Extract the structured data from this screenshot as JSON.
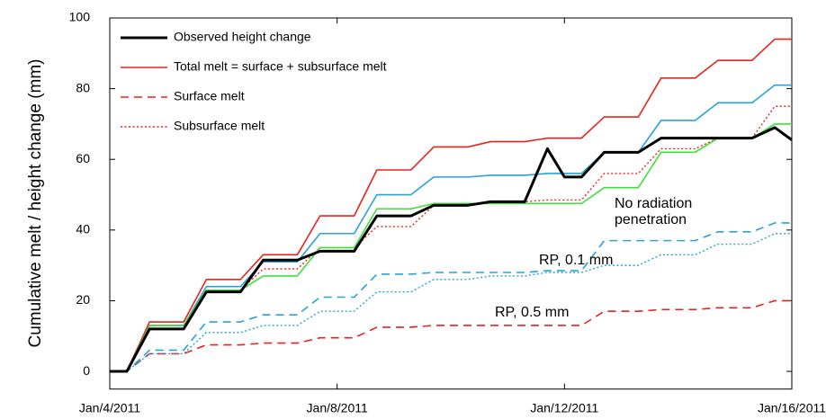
{
  "chart_data": {
    "type": "line",
    "y_label": "Cumulative melt / height change (mm)",
    "xlim": [
      4,
      16
    ],
    "xticks": [
      {
        "value": 4,
        "label": "Jan/4/2011"
      },
      {
        "value": 8,
        "label": "Jan/8/2011"
      },
      {
        "value": 12,
        "label": "Jan/12/2011"
      },
      {
        "value": 16,
        "label": "Jan/16/2011"
      }
    ],
    "ylim": [
      -5,
      100
    ],
    "yticks": [
      0,
      20,
      40,
      60,
      80,
      100
    ],
    "grid": false,
    "legend": "upper-left",
    "x": [
      4,
      4.3,
      4.7,
      5,
      5.3,
      5.7,
      6,
      6.3,
      6.7,
      7,
      7.3,
      7.7,
      8,
      8.3,
      8.7,
      9,
      9.3,
      9.7,
      10,
      10.3,
      10.7,
      11,
      11.3,
      11.7,
      12,
      12.3,
      12.7,
      13,
      13.3,
      13.7,
      14,
      14.3,
      14.7,
      15,
      15.3,
      15.7,
      16
    ],
    "series": [
      {
        "name": "Observed height change",
        "color": "#000000",
        "dash": "solid",
        "width": 3,
        "values": [
          0,
          0,
          12,
          12,
          12,
          22.5,
          22.5,
          22.5,
          31.5,
          31.5,
          31.5,
          34,
          34,
          34,
          44,
          44,
          44,
          47,
          47,
          47,
          48,
          48,
          48,
          63,
          55,
          55,
          62,
          62,
          62,
          66,
          66,
          66,
          66,
          66,
          66,
          69,
          65.5
        ]
      },
      {
        "name": "Total melt = surface + subsurface melt",
        "color": "#e8231e",
        "dash": "solid",
        "width": 1.6,
        "values": [
          0,
          0,
          14,
          14,
          14,
          26,
          26,
          26,
          33,
          33,
          33,
          44,
          44,
          44,
          57,
          57,
          57,
          63.5,
          63.5,
          63.5,
          65,
          65,
          65,
          66,
          66,
          66,
          72,
          72,
          72,
          83,
          83,
          83,
          88,
          88,
          88,
          94,
          94
        ]
      },
      {
        "name": "Surface melt",
        "color": "#e8231e",
        "dash": "dashed",
        "width": 1.6,
        "values": [
          0,
          0,
          5,
          5,
          5,
          7.5,
          7.5,
          7.5,
          8,
          8,
          8,
          9.5,
          9.5,
          9.5,
          12.5,
          12.5,
          12.5,
          13,
          13,
          13,
          13,
          13,
          13,
          13,
          13,
          13,
          17,
          17,
          17,
          17.5,
          17.5,
          17.5,
          18,
          18,
          18,
          20,
          20
        ]
      },
      {
        "name": "Subsurface melt",
        "color": "#e8231e",
        "dash": "dotted",
        "width": 1.4,
        "values": [
          0,
          0,
          13,
          13,
          13,
          23,
          23,
          23,
          29,
          29,
          29,
          35,
          35,
          35,
          41,
          41,
          41,
          47,
          47,
          47,
          48,
          48,
          48,
          48.5,
          48.5,
          48.5,
          56,
          56,
          56,
          63,
          63,
          63,
          66,
          66,
          66,
          75,
          75
        ]
      },
      {
        "color": "#27a3d8",
        "dash": "solid",
        "width": 1.6,
        "values": [
          0,
          0,
          13,
          13,
          13,
          24,
          24,
          24,
          31,
          31,
          31,
          39,
          39,
          39,
          50,
          50,
          50,
          55,
          55,
          55,
          55.5,
          55.5,
          55.5,
          56,
          56,
          56,
          62,
          62,
          62,
          71,
          71,
          71,
          76,
          76,
          76,
          81,
          81
        ]
      },
      {
        "color": "#27a3d8",
        "dash": "dashed",
        "width": 1.6,
        "values": [
          0,
          0,
          6,
          6,
          6,
          14,
          14,
          14,
          16,
          16,
          16,
          21,
          21,
          21,
          27.5,
          27.5,
          27.5,
          28,
          28,
          28,
          28,
          28,
          28,
          28.5,
          28.5,
          28.5,
          37,
          37,
          37,
          37,
          37,
          37,
          39.5,
          39.5,
          39.5,
          42,
          42
        ]
      },
      {
        "color": "#27a3d8",
        "dash": "dotted",
        "width": 1.4,
        "values": [
          0,
          0,
          5,
          5,
          5,
          11,
          11,
          11,
          13,
          13,
          13,
          17,
          17,
          17,
          22.5,
          22.5,
          22.5,
          26,
          26,
          26,
          27,
          27,
          27,
          28,
          28,
          28,
          30,
          30,
          30,
          33,
          33,
          33,
          36,
          36,
          36,
          39,
          39
        ]
      },
      {
        "color": "#3ee03a",
        "dash": "solid",
        "width": 1.6,
        "values": [
          0,
          0,
          13,
          13,
          13,
          23,
          23,
          23,
          27,
          27,
          27,
          35,
          35,
          35,
          46,
          46,
          46,
          47.5,
          47.5,
          47.5,
          47.5,
          47.5,
          47.5,
          47.5,
          47.5,
          47.5,
          52,
          52,
          52,
          62,
          62,
          62,
          66,
          66,
          66,
          70,
          70
        ]
      }
    ],
    "annotations": [
      {
        "lines": [
          "No radiation",
          "penetration"
        ],
        "color": "#3ee03a"
      },
      {
        "lines": [
          "RP, 0.1 mm"
        ],
        "color": "#27a3d8"
      },
      {
        "lines": [
          "RP, 0.5 mm"
        ],
        "color": "#e8231e"
      }
    ]
  }
}
